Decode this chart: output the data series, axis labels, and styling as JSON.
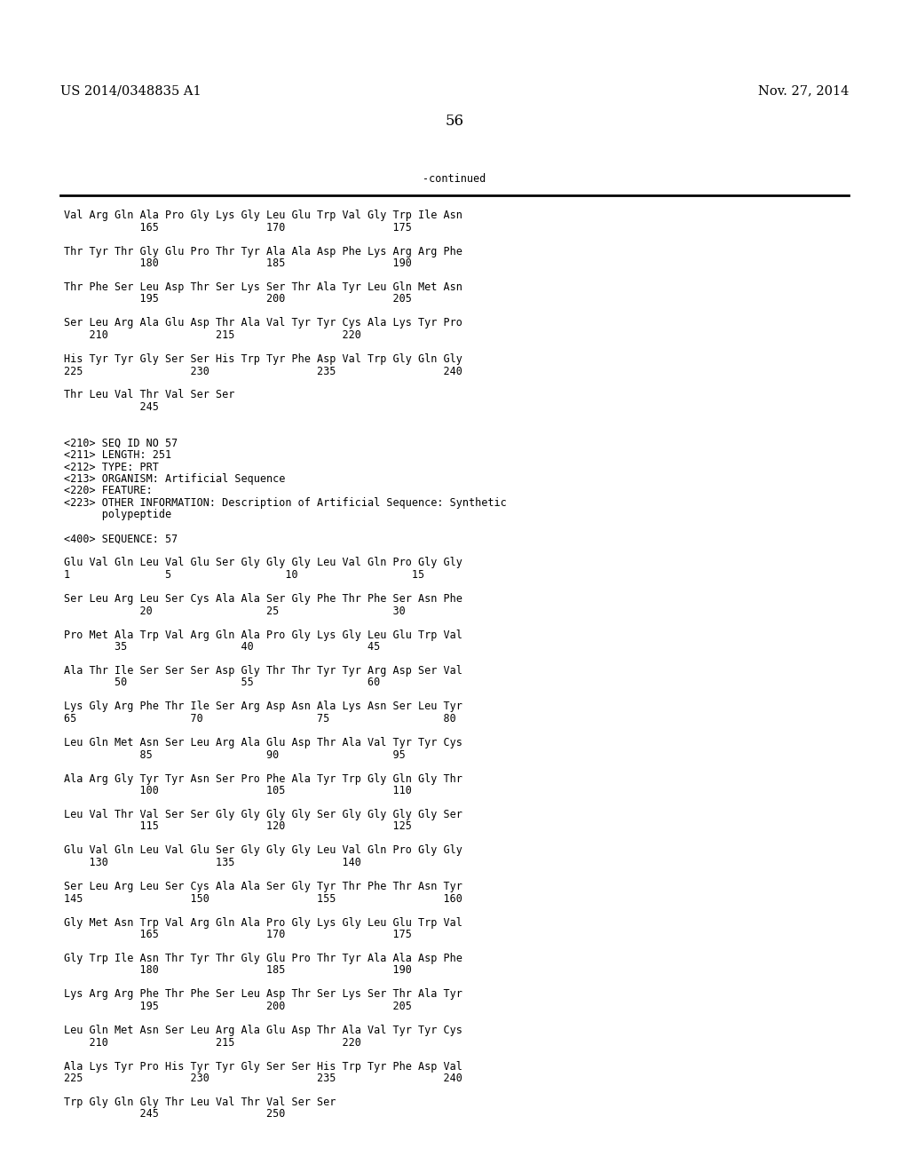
{
  "header_left": "US 2014/0348835 A1",
  "header_right": "Nov. 27, 2014",
  "page_number": "56",
  "continued_label": "-continued",
  "background_color": "#ffffff",
  "text_color": "#000000",
  "mono_font_size": 8.5,
  "header_font_size": 10.5,
  "page_num_font_size": 12,
  "content_lines": [
    "Val Arg Gln Ala Pro Gly Lys Gly Leu Glu Trp Val Gly Trp Ile Asn",
    "            165                 170                 175",
    "",
    "Thr Tyr Thr Gly Glu Pro Thr Tyr Ala Ala Asp Phe Lys Arg Arg Phe",
    "            180                 185                 190",
    "",
    "Thr Phe Ser Leu Asp Thr Ser Lys Ser Thr Ala Tyr Leu Gln Met Asn",
    "            195                 200                 205",
    "",
    "Ser Leu Arg Ala Glu Asp Thr Ala Val Tyr Tyr Cys Ala Lys Tyr Pro",
    "    210                 215                 220",
    "",
    "His Tyr Tyr Gly Ser Ser His Trp Tyr Phe Asp Val Trp Gly Gln Gly",
    "225                 230                 235                 240",
    "",
    "Thr Leu Val Thr Val Ser Ser",
    "            245",
    "",
    "",
    "<210> SEQ ID NO 57",
    "<211> LENGTH: 251",
    "<212> TYPE: PRT",
    "<213> ORGANISM: Artificial Sequence",
    "<220> FEATURE:",
    "<223> OTHER INFORMATION: Description of Artificial Sequence: Synthetic",
    "      polypeptide",
    "",
    "<400> SEQUENCE: 57",
    "",
    "Glu Val Gln Leu Val Glu Ser Gly Gly Gly Leu Val Gln Pro Gly Gly",
    "1               5                  10                  15",
    "",
    "Ser Leu Arg Leu Ser Cys Ala Ala Ser Gly Phe Thr Phe Ser Asn Phe",
    "            20                  25                  30",
    "",
    "Pro Met Ala Trp Val Arg Gln Ala Pro Gly Lys Gly Leu Glu Trp Val",
    "        35                  40                  45",
    "",
    "Ala Thr Ile Ser Ser Ser Asp Gly Thr Thr Tyr Tyr Arg Asp Ser Val",
    "        50                  55                  60",
    "",
    "Lys Gly Arg Phe Thr Ile Ser Arg Asp Asn Ala Lys Asn Ser Leu Tyr",
    "65                  70                  75                  80",
    "",
    "Leu Gln Met Asn Ser Leu Arg Ala Glu Asp Thr Ala Val Tyr Tyr Cys",
    "            85                  90                  95",
    "",
    "Ala Arg Gly Tyr Tyr Asn Ser Pro Phe Ala Tyr Trp Gly Gln Gly Thr",
    "            100                 105                 110",
    "",
    "Leu Val Thr Val Ser Ser Gly Gly Gly Gly Ser Gly Gly Gly Gly Ser",
    "            115                 120                 125",
    "",
    "Glu Val Gln Leu Val Glu Ser Gly Gly Gly Leu Val Gln Pro Gly Gly",
    "    130                 135                 140",
    "",
    "Ser Leu Arg Leu Ser Cys Ala Ala Ser Gly Tyr Thr Phe Thr Asn Tyr",
    "145                 150                 155                 160",
    "",
    "Gly Met Asn Trp Val Arg Gln Ala Pro Gly Lys Gly Leu Glu Trp Val",
    "            165                 170                 175",
    "",
    "Gly Trp Ile Asn Thr Tyr Thr Gly Glu Pro Thr Tyr Ala Ala Asp Phe",
    "            180                 185                 190",
    "",
    "Lys Arg Arg Phe Thr Phe Ser Leu Asp Thr Ser Lys Ser Thr Ala Tyr",
    "            195                 200                 205",
    "",
    "Leu Gln Met Asn Ser Leu Arg Ala Glu Asp Thr Ala Val Tyr Tyr Cys",
    "    210                 215                 220",
    "",
    "Ala Lys Tyr Pro His Tyr Tyr Gly Ser Ser His Trp Tyr Phe Asp Val",
    "225                 230                 235                 240",
    "",
    "Trp Gly Gln Gly Thr Leu Val Thr Val Ser Ser",
    "            245                 250"
  ]
}
